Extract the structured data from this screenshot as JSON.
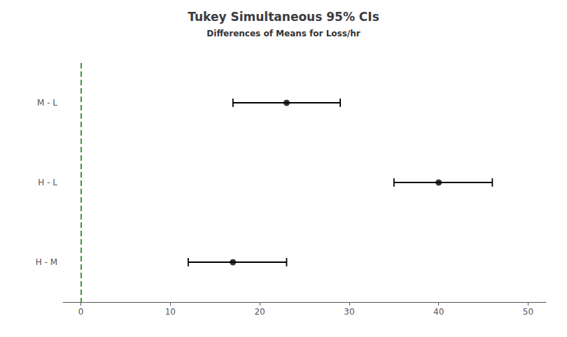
{
  "chart_data": {
    "type": "interval",
    "title": "Tukey Simultaneous 95% CIs",
    "subtitle": "Differences of Means for Loss/hr",
    "categories": [
      "M - L",
      "H - L",
      "H - M"
    ],
    "values": [
      23,
      40,
      17
    ],
    "ci_low": [
      17,
      35,
      12
    ],
    "ci_high": [
      29,
      46,
      23
    ],
    "color": "#000000",
    "marker": "circle",
    "orientation": "horizontal",
    "xlim": [
      -2,
      52
    ],
    "xticks": [
      0,
      10,
      20,
      30,
      40,
      50
    ],
    "grid": false,
    "reference_line": {
      "value": 0,
      "color": "#3a9a3a",
      "line_style": "dashed"
    }
  }
}
